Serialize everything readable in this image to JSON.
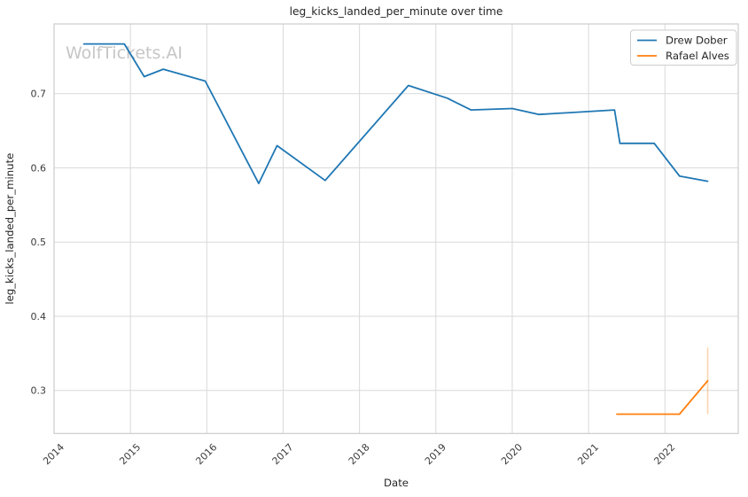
{
  "watermark": {
    "text": "WolfTickets.AI",
    "color": "#c6c6c6"
  },
  "colors": {
    "series_blue": "#1f77b4",
    "series_orange": "#ff7f0e",
    "grid": "#d9d9d9",
    "spine": "#cccccc",
    "title_text": "#262626",
    "tick_text": "#3b3b3b",
    "legend_border": "#cccccc",
    "legend_bg": "#ffffff"
  },
  "chart_data": {
    "type": "line",
    "title": "leg_kicks_landed_per_minute over time",
    "xlabel": "Date",
    "ylabel": "leg_kicks_landed_per_minute",
    "x_ticks": [
      "2014",
      "2015",
      "2016",
      "2017",
      "2018",
      "2019",
      "2020",
      "2021",
      "2022"
    ],
    "y_ticks": [
      "0.3",
      "0.4",
      "0.5",
      "0.6",
      "0.7"
    ],
    "xlim": [
      2014.0,
      2022.96
    ],
    "ylim": [
      0.242,
      0.794
    ],
    "grid": true,
    "legend_position": "upper right",
    "series": [
      {
        "name": "Drew Dober",
        "color": "#1f77b4",
        "x": [
          2014.39,
          2014.92,
          2015.18,
          2015.43,
          2015.98,
          2016.68,
          2016.92,
          2017.55,
          2018.64,
          2019.15,
          2019.46,
          2020.0,
          2020.35,
          2021.34,
          2021.41,
          2021.86,
          2022.19,
          2022.56
        ],
        "y": [
          0.767,
          0.767,
          0.723,
          0.733,
          0.717,
          0.579,
          0.63,
          0.583,
          0.711,
          0.694,
          0.678,
          0.68,
          0.672,
          0.678,
          0.633,
          0.633,
          0.589,
          0.582
        ]
      },
      {
        "name": "Rafael Alves",
        "color": "#ff7f0e",
        "x": [
          2021.37,
          2022.19,
          2022.56
        ],
        "y": [
          0.268,
          0.268,
          0.313
        ],
        "error_bar_last": {
          "x": 2022.56,
          "low": 0.268,
          "high": 0.358
        }
      }
    ]
  }
}
